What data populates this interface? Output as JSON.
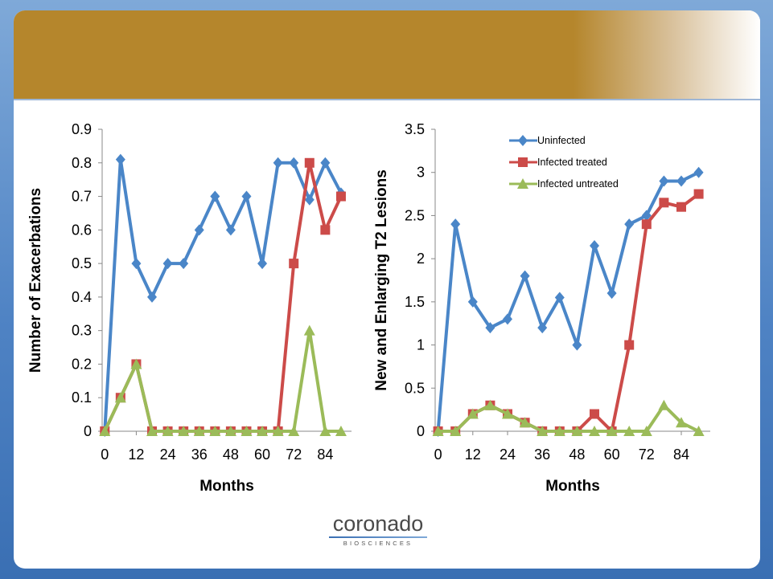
{
  "logo": {
    "name": "coronado",
    "sub": "BIOSCIENCES"
  },
  "colors": {
    "uninfected": "#4a86c8",
    "infected_treated": "#cc4b49",
    "infected_untreated": "#9bbb59"
  },
  "chart_data": [
    {
      "type": "line",
      "xlabel": "Months",
      "ylabel": "Number of Exacerbations",
      "x_ticks": [
        0,
        12,
        24,
        36,
        48,
        60,
        72,
        84
      ],
      "y_ticks": [
        0,
        0.1,
        0.2,
        0.3,
        0.4,
        0.5,
        0.6,
        0.7,
        0.8,
        0.9
      ],
      "xlim": [
        -1,
        94
      ],
      "ylim": [
        0,
        0.9
      ],
      "x": [
        0,
        6,
        12,
        18,
        24,
        30,
        36,
        42,
        48,
        54,
        60,
        66,
        72,
        78,
        84,
        90
      ],
      "series": [
        {
          "name": "Uninfected",
          "marker": "diamond",
          "values": [
            0,
            0.81,
            0.5,
            0.4,
            0.5,
            0.5,
            0.6,
            0.7,
            0.6,
            0.7,
            0.5,
            0.8,
            0.8,
            0.69,
            0.8,
            0.71
          ]
        },
        {
          "name": "Infected treated",
          "marker": "square",
          "values": [
            0,
            0.1,
            0.2,
            0,
            0,
            0,
            0,
            0,
            0,
            0,
            0,
            0,
            0.5,
            0.8,
            0.6,
            0.7
          ]
        },
        {
          "name": "Infected untreated",
          "marker": "triangle",
          "values": [
            0,
            0.1,
            0.2,
            0,
            0,
            0,
            0,
            0,
            0,
            0,
            0,
            0,
            0,
            0.3,
            0,
            0
          ]
        }
      ]
    },
    {
      "type": "line",
      "xlabel": "Months",
      "ylabel": "New and Enlarging T2 Lesions",
      "x_ticks": [
        0,
        12,
        24,
        36,
        48,
        60,
        72,
        84
      ],
      "y_ticks": [
        0,
        0.5,
        1,
        1.5,
        2,
        2.5,
        3,
        3.5
      ],
      "y_tick_labels": [
        "0",
        "0.5",
        "1",
        "1.5",
        "2",
        "2.5",
        "3",
        "3.5"
      ],
      "xlim": [
        -1,
        94
      ],
      "ylim": [
        0,
        3.5
      ],
      "x": [
        0,
        6,
        12,
        18,
        24,
        30,
        36,
        42,
        48,
        54,
        60,
        66,
        72,
        78,
        84,
        90
      ],
      "legend": [
        "Uninfected",
        "Infected treated",
        "Infected untreated"
      ],
      "legend_position": "top-right",
      "series": [
        {
          "name": "Uninfected",
          "marker": "diamond",
          "values": [
            0,
            2.4,
            1.5,
            1.2,
            1.3,
            1.8,
            1.2,
            1.55,
            1.0,
            2.15,
            1.6,
            2.4,
            2.5,
            2.9,
            2.9,
            3.0
          ]
        },
        {
          "name": "Infected treated",
          "marker": "square",
          "values": [
            0,
            0,
            0.2,
            0.3,
            0.2,
            0.1,
            0,
            0,
            0,
            0.2,
            0,
            1.0,
            2.4,
            2.65,
            2.6,
            2.75
          ]
        },
        {
          "name": "Infected untreated",
          "marker": "triangle",
          "values": [
            0,
            0,
            0.2,
            0.3,
            0.2,
            0.1,
            0,
            0,
            0,
            0,
            0,
            0,
            0,
            0.3,
            0.1,
            0
          ]
        }
      ]
    }
  ]
}
